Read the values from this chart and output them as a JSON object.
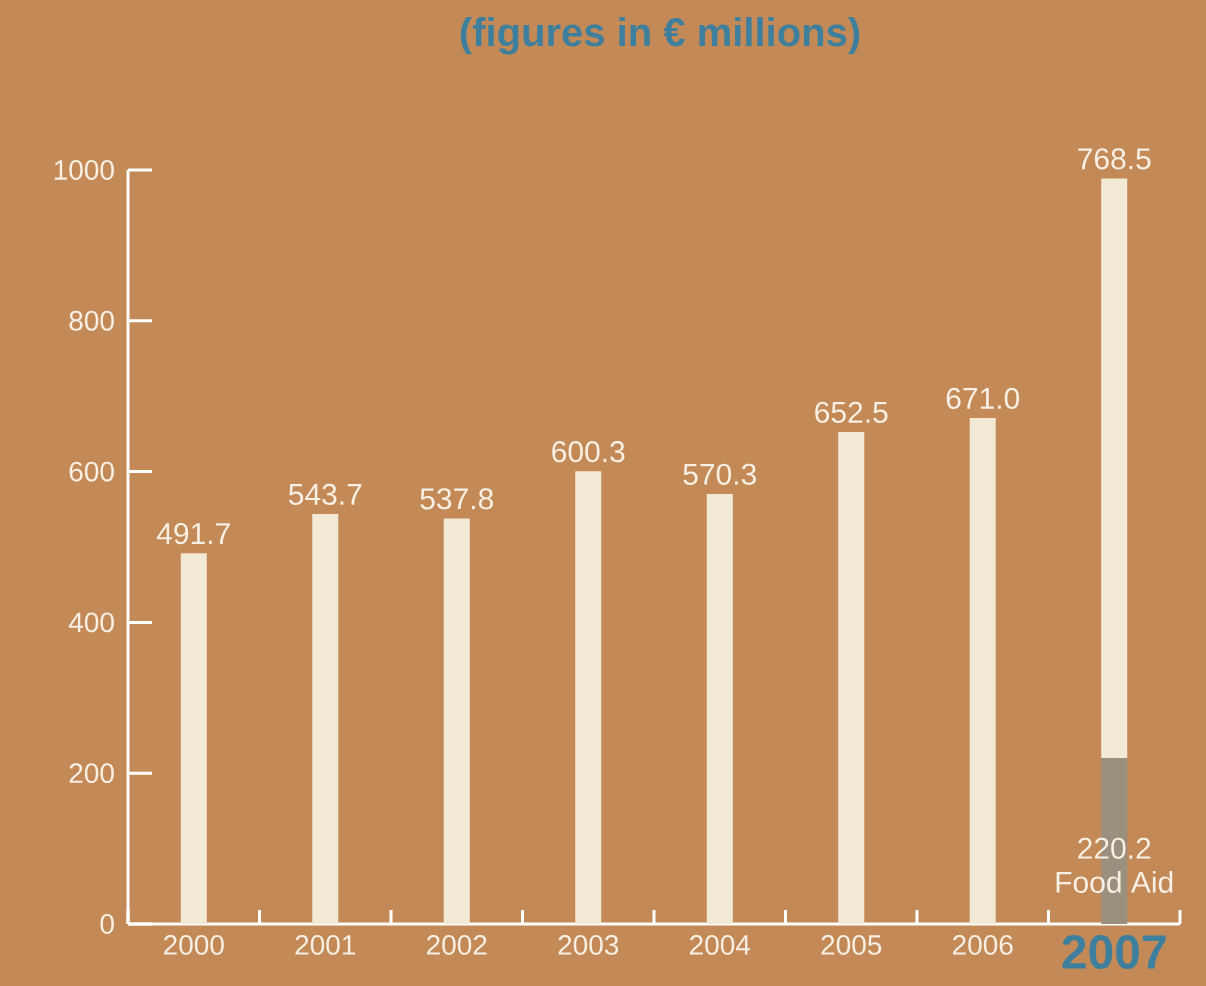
{
  "chart_data": {
    "type": "bar",
    "title": "(figures in € millions)",
    "stacked": true,
    "grid": false,
    "categories": [
      "2000",
      "2001",
      "2002",
      "2003",
      "2004",
      "2005",
      "2006",
      "2007"
    ],
    "series": [
      {
        "name": "Food Aid",
        "color": "#9b8f7d",
        "values": [
          null,
          null,
          null,
          null,
          null,
          null,
          null,
          220.2
        ],
        "value_labels": [
          null,
          null,
          null,
          null,
          null,
          null,
          null,
          "220.2"
        ]
      },
      {
        "color": "#f3ead6",
        "values": [
          491.7,
          543.7,
          537.8,
          600.3,
          570.3,
          652.5,
          671.0,
          768.5
        ],
        "value_labels": [
          "491.7",
          "543.7",
          "537.8",
          "600.3",
          "570.3",
          "652.5",
          "671.0",
          "768.5"
        ]
      }
    ],
    "ylim": [
      0,
      1000
    ],
    "yticks": [
      0,
      200,
      400,
      600,
      800,
      1000
    ]
  }
}
